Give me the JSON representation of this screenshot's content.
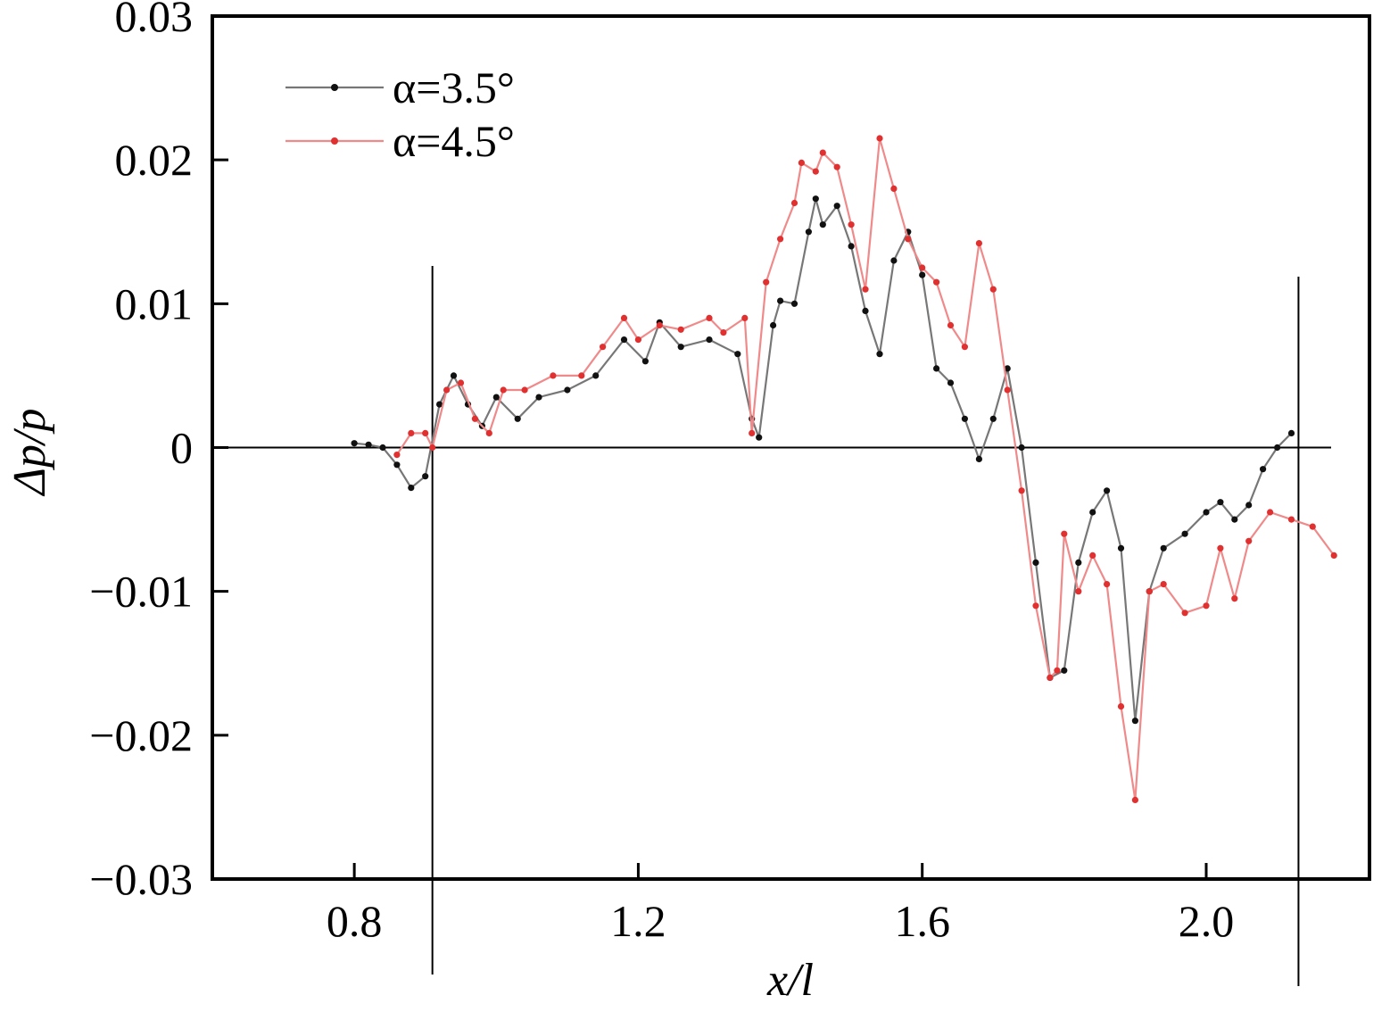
{
  "chart_data": {
    "type": "line",
    "xlabel": "x/l",
    "ylabel": "Δp/p",
    "xlim": [
      0.6,
      2.23
    ],
    "ylim": [
      -0.03,
      0.03
    ],
    "x_ticks": [
      0.8,
      1.2,
      1.6,
      2.0
    ],
    "x_tick_labels": [
      "0.8",
      "1.2",
      "1.6",
      "2.0"
    ],
    "y_ticks": [
      -0.03,
      -0.02,
      -0.01,
      0,
      0.01,
      0.02,
      0.03
    ],
    "y_tick_labels": [
      "−0.03",
      "−0.02",
      "−0.01",
      "0",
      "0.01",
      "0.02",
      "0.03"
    ],
    "grid": false,
    "legend_position": "top-left",
    "reference_lines": {
      "horizontal_y": 0,
      "vertical_x": [
        0.91,
        2.13
      ]
    },
    "series": [
      {
        "name": "α=3.5°",
        "color": "#111111",
        "line_color": "#777777",
        "points": [
          [
            0.8,
            0.0003
          ],
          [
            0.82,
            0.0002
          ],
          [
            0.84,
            0.0
          ],
          [
            0.86,
            -0.0012
          ],
          [
            0.88,
            -0.0028
          ],
          [
            0.9,
            -0.002
          ],
          [
            0.92,
            0.003
          ],
          [
            0.94,
            0.005
          ],
          [
            0.96,
            0.003
          ],
          [
            0.98,
            0.0015
          ],
          [
            1.0,
            0.0035
          ],
          [
            1.03,
            0.002
          ],
          [
            1.06,
            0.0035
          ],
          [
            1.1,
            0.004
          ],
          [
            1.14,
            0.005
          ],
          [
            1.18,
            0.0075
          ],
          [
            1.21,
            0.006
          ],
          [
            1.23,
            0.0087
          ],
          [
            1.26,
            0.007
          ],
          [
            1.3,
            0.0075
          ],
          [
            1.34,
            0.0065
          ],
          [
            1.36,
            0.002
          ],
          [
            1.37,
            0.0007
          ],
          [
            1.39,
            0.0085
          ],
          [
            1.4,
            0.0102
          ],
          [
            1.42,
            0.01
          ],
          [
            1.44,
            0.015
          ],
          [
            1.45,
            0.0173
          ],
          [
            1.46,
            0.0155
          ],
          [
            1.48,
            0.0168
          ],
          [
            1.5,
            0.014
          ],
          [
            1.52,
            0.0095
          ],
          [
            1.54,
            0.0065
          ],
          [
            1.56,
            0.013
          ],
          [
            1.58,
            0.015
          ],
          [
            1.6,
            0.012
          ],
          [
            1.62,
            0.0055
          ],
          [
            1.64,
            0.0045
          ],
          [
            1.66,
            0.002
          ],
          [
            1.68,
            -0.0008
          ],
          [
            1.7,
            0.002
          ],
          [
            1.72,
            0.0055
          ],
          [
            1.74,
            0.0
          ],
          [
            1.76,
            -0.008
          ],
          [
            1.78,
            -0.016
          ],
          [
            1.8,
            -0.0155
          ],
          [
            1.82,
            -0.008
          ],
          [
            1.84,
            -0.0045
          ],
          [
            1.86,
            -0.003
          ],
          [
            1.88,
            -0.007
          ],
          [
            1.9,
            -0.019
          ],
          [
            1.92,
            -0.01
          ],
          [
            1.94,
            -0.007
          ],
          [
            1.97,
            -0.006
          ],
          [
            2.0,
            -0.0045
          ],
          [
            2.02,
            -0.0038
          ],
          [
            2.04,
            -0.005
          ],
          [
            2.06,
            -0.004
          ],
          [
            2.08,
            -0.0015
          ],
          [
            2.1,
            0.0
          ],
          [
            2.12,
            0.001
          ]
        ]
      },
      {
        "name": "α=4.5°",
        "color": "#e03030",
        "line_color": "#f08a8a",
        "points": [
          [
            0.86,
            -0.0005
          ],
          [
            0.88,
            0.001
          ],
          [
            0.9,
            0.001
          ],
          [
            0.91,
            0.0
          ],
          [
            0.93,
            0.004
          ],
          [
            0.95,
            0.0045
          ],
          [
            0.97,
            0.002
          ],
          [
            0.99,
            0.001
          ],
          [
            1.01,
            0.004
          ],
          [
            1.04,
            0.004
          ],
          [
            1.08,
            0.005
          ],
          [
            1.12,
            0.005
          ],
          [
            1.15,
            0.007
          ],
          [
            1.18,
            0.009
          ],
          [
            1.2,
            0.0075
          ],
          [
            1.23,
            0.0085
          ],
          [
            1.26,
            0.0082
          ],
          [
            1.3,
            0.009
          ],
          [
            1.32,
            0.008
          ],
          [
            1.35,
            0.009
          ],
          [
            1.36,
            0.001
          ],
          [
            1.38,
            0.0115
          ],
          [
            1.4,
            0.0145
          ],
          [
            1.42,
            0.017
          ],
          [
            1.43,
            0.0198
          ],
          [
            1.45,
            0.0192
          ],
          [
            1.46,
            0.0205
          ],
          [
            1.48,
            0.0195
          ],
          [
            1.5,
            0.0155
          ],
          [
            1.52,
            0.011
          ],
          [
            1.54,
            0.0215
          ],
          [
            1.56,
            0.018
          ],
          [
            1.58,
            0.0145
          ],
          [
            1.6,
            0.0125
          ],
          [
            1.62,
            0.0115
          ],
          [
            1.64,
            0.0085
          ],
          [
            1.66,
            0.007
          ],
          [
            1.68,
            0.0142
          ],
          [
            1.7,
            0.011
          ],
          [
            1.72,
            0.004
          ],
          [
            1.74,
            -0.003
          ],
          [
            1.76,
            -0.011
          ],
          [
            1.78,
            -0.016
          ],
          [
            1.79,
            -0.0155
          ],
          [
            1.8,
            -0.006
          ],
          [
            1.82,
            -0.01
          ],
          [
            1.84,
            -0.0075
          ],
          [
            1.86,
            -0.0095
          ],
          [
            1.88,
            -0.018
          ],
          [
            1.9,
            -0.0245
          ],
          [
            1.92,
            -0.01
          ],
          [
            1.94,
            -0.0095
          ],
          [
            1.97,
            -0.0115
          ],
          [
            2.0,
            -0.011
          ],
          [
            2.02,
            -0.007
          ],
          [
            2.04,
            -0.0105
          ],
          [
            2.06,
            -0.0065
          ],
          [
            2.09,
            -0.0045
          ],
          [
            2.12,
            -0.005
          ],
          [
            2.15,
            -0.0055
          ],
          [
            2.18,
            -0.0075
          ]
        ]
      }
    ]
  }
}
